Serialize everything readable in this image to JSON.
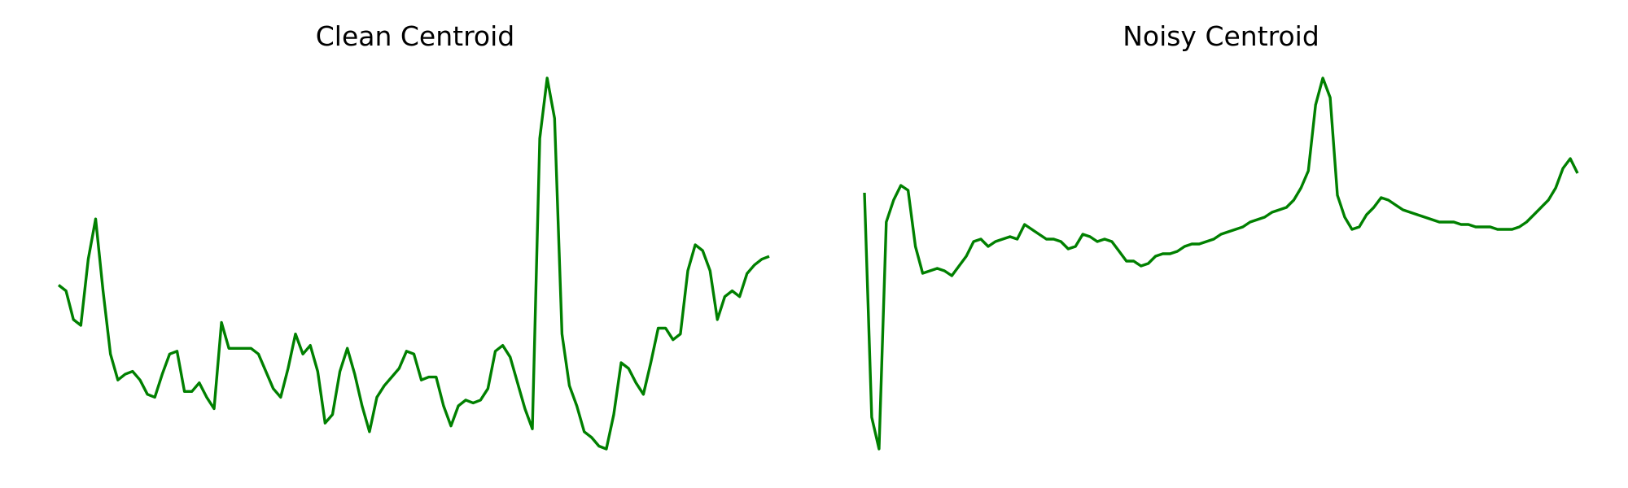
{
  "chart_data": [
    {
      "type": "line",
      "title": "Clean Centroid",
      "xlabel": "",
      "ylabel": "",
      "grid": false,
      "axes_visible": false,
      "series": [
        {
          "color": "#008000",
          "values": [
            0.28,
            0.26,
            0.16,
            0.14,
            0.37,
            0.51,
            0.26,
            0.04,
            -0.05,
            -0.03,
            -0.02,
            -0.05,
            -0.1,
            -0.11,
            -0.03,
            0.04,
            0.05,
            -0.09,
            -0.09,
            -0.06,
            -0.11,
            -0.15,
            0.15,
            0.06,
            0.06,
            0.06,
            0.06,
            0.04,
            -0.02,
            -0.08,
            -0.11,
            -0.01,
            0.11,
            0.04,
            0.07,
            -0.02,
            -0.2,
            -0.17,
            -0.02,
            0.06,
            -0.03,
            -0.14,
            -0.23,
            -0.11,
            -0.07,
            -0.04,
            -0.01,
            0.05,
            0.04,
            -0.05,
            -0.04,
            -0.04,
            -0.14,
            -0.21,
            -0.14,
            -0.12,
            -0.13,
            -0.12,
            -0.08,
            0.05,
            0.07,
            0.03,
            -0.06,
            -0.15,
            -0.22,
            0.79,
            1.0,
            0.86,
            0.11,
            -0.07,
            -0.14,
            -0.23,
            -0.25,
            -0.28,
            -0.29,
            -0.17,
            0.01,
            -0.01,
            -0.06,
            -0.1,
            0.01,
            0.13,
            0.13,
            0.09,
            0.11,
            0.33,
            0.42,
            0.4,
            0.33,
            0.16,
            0.24,
            0.26,
            0.24,
            0.32,
            0.35,
            0.37,
            0.38
          ]
        }
      ]
    },
    {
      "type": "line",
      "title": "Noisy Centroid",
      "xlabel": "",
      "ylabel": "",
      "grid": false,
      "axes_visible": false,
      "series": [
        {
          "color": "#008000",
          "values": [
            0.53,
            -0.39,
            -0.52,
            0.41,
            0.5,
            0.56,
            0.54,
            0.31,
            0.2,
            0.21,
            0.22,
            0.21,
            0.19,
            0.23,
            0.27,
            0.33,
            0.34,
            0.31,
            0.33,
            0.34,
            0.35,
            0.34,
            0.4,
            0.38,
            0.36,
            0.34,
            0.34,
            0.33,
            0.3,
            0.31,
            0.36,
            0.35,
            0.33,
            0.34,
            0.33,
            0.29,
            0.25,
            0.25,
            0.23,
            0.24,
            0.27,
            0.28,
            0.28,
            0.29,
            0.31,
            0.32,
            0.32,
            0.33,
            0.34,
            0.36,
            0.37,
            0.38,
            0.39,
            0.41,
            0.42,
            0.43,
            0.45,
            0.46,
            0.47,
            0.5,
            0.55,
            0.62,
            0.89,
            1.0,
            0.92,
            0.52,
            0.43,
            0.38,
            0.39,
            0.44,
            0.47,
            0.51,
            0.5,
            0.48,
            0.46,
            0.45,
            0.44,
            0.43,
            0.42,
            0.41,
            0.41,
            0.41,
            0.4,
            0.4,
            0.39,
            0.39,
            0.39,
            0.38,
            0.38,
            0.38,
            0.39,
            0.41,
            0.44,
            0.47,
            0.5,
            0.55,
            0.63,
            0.67,
            0.61
          ]
        }
      ]
    }
  ]
}
